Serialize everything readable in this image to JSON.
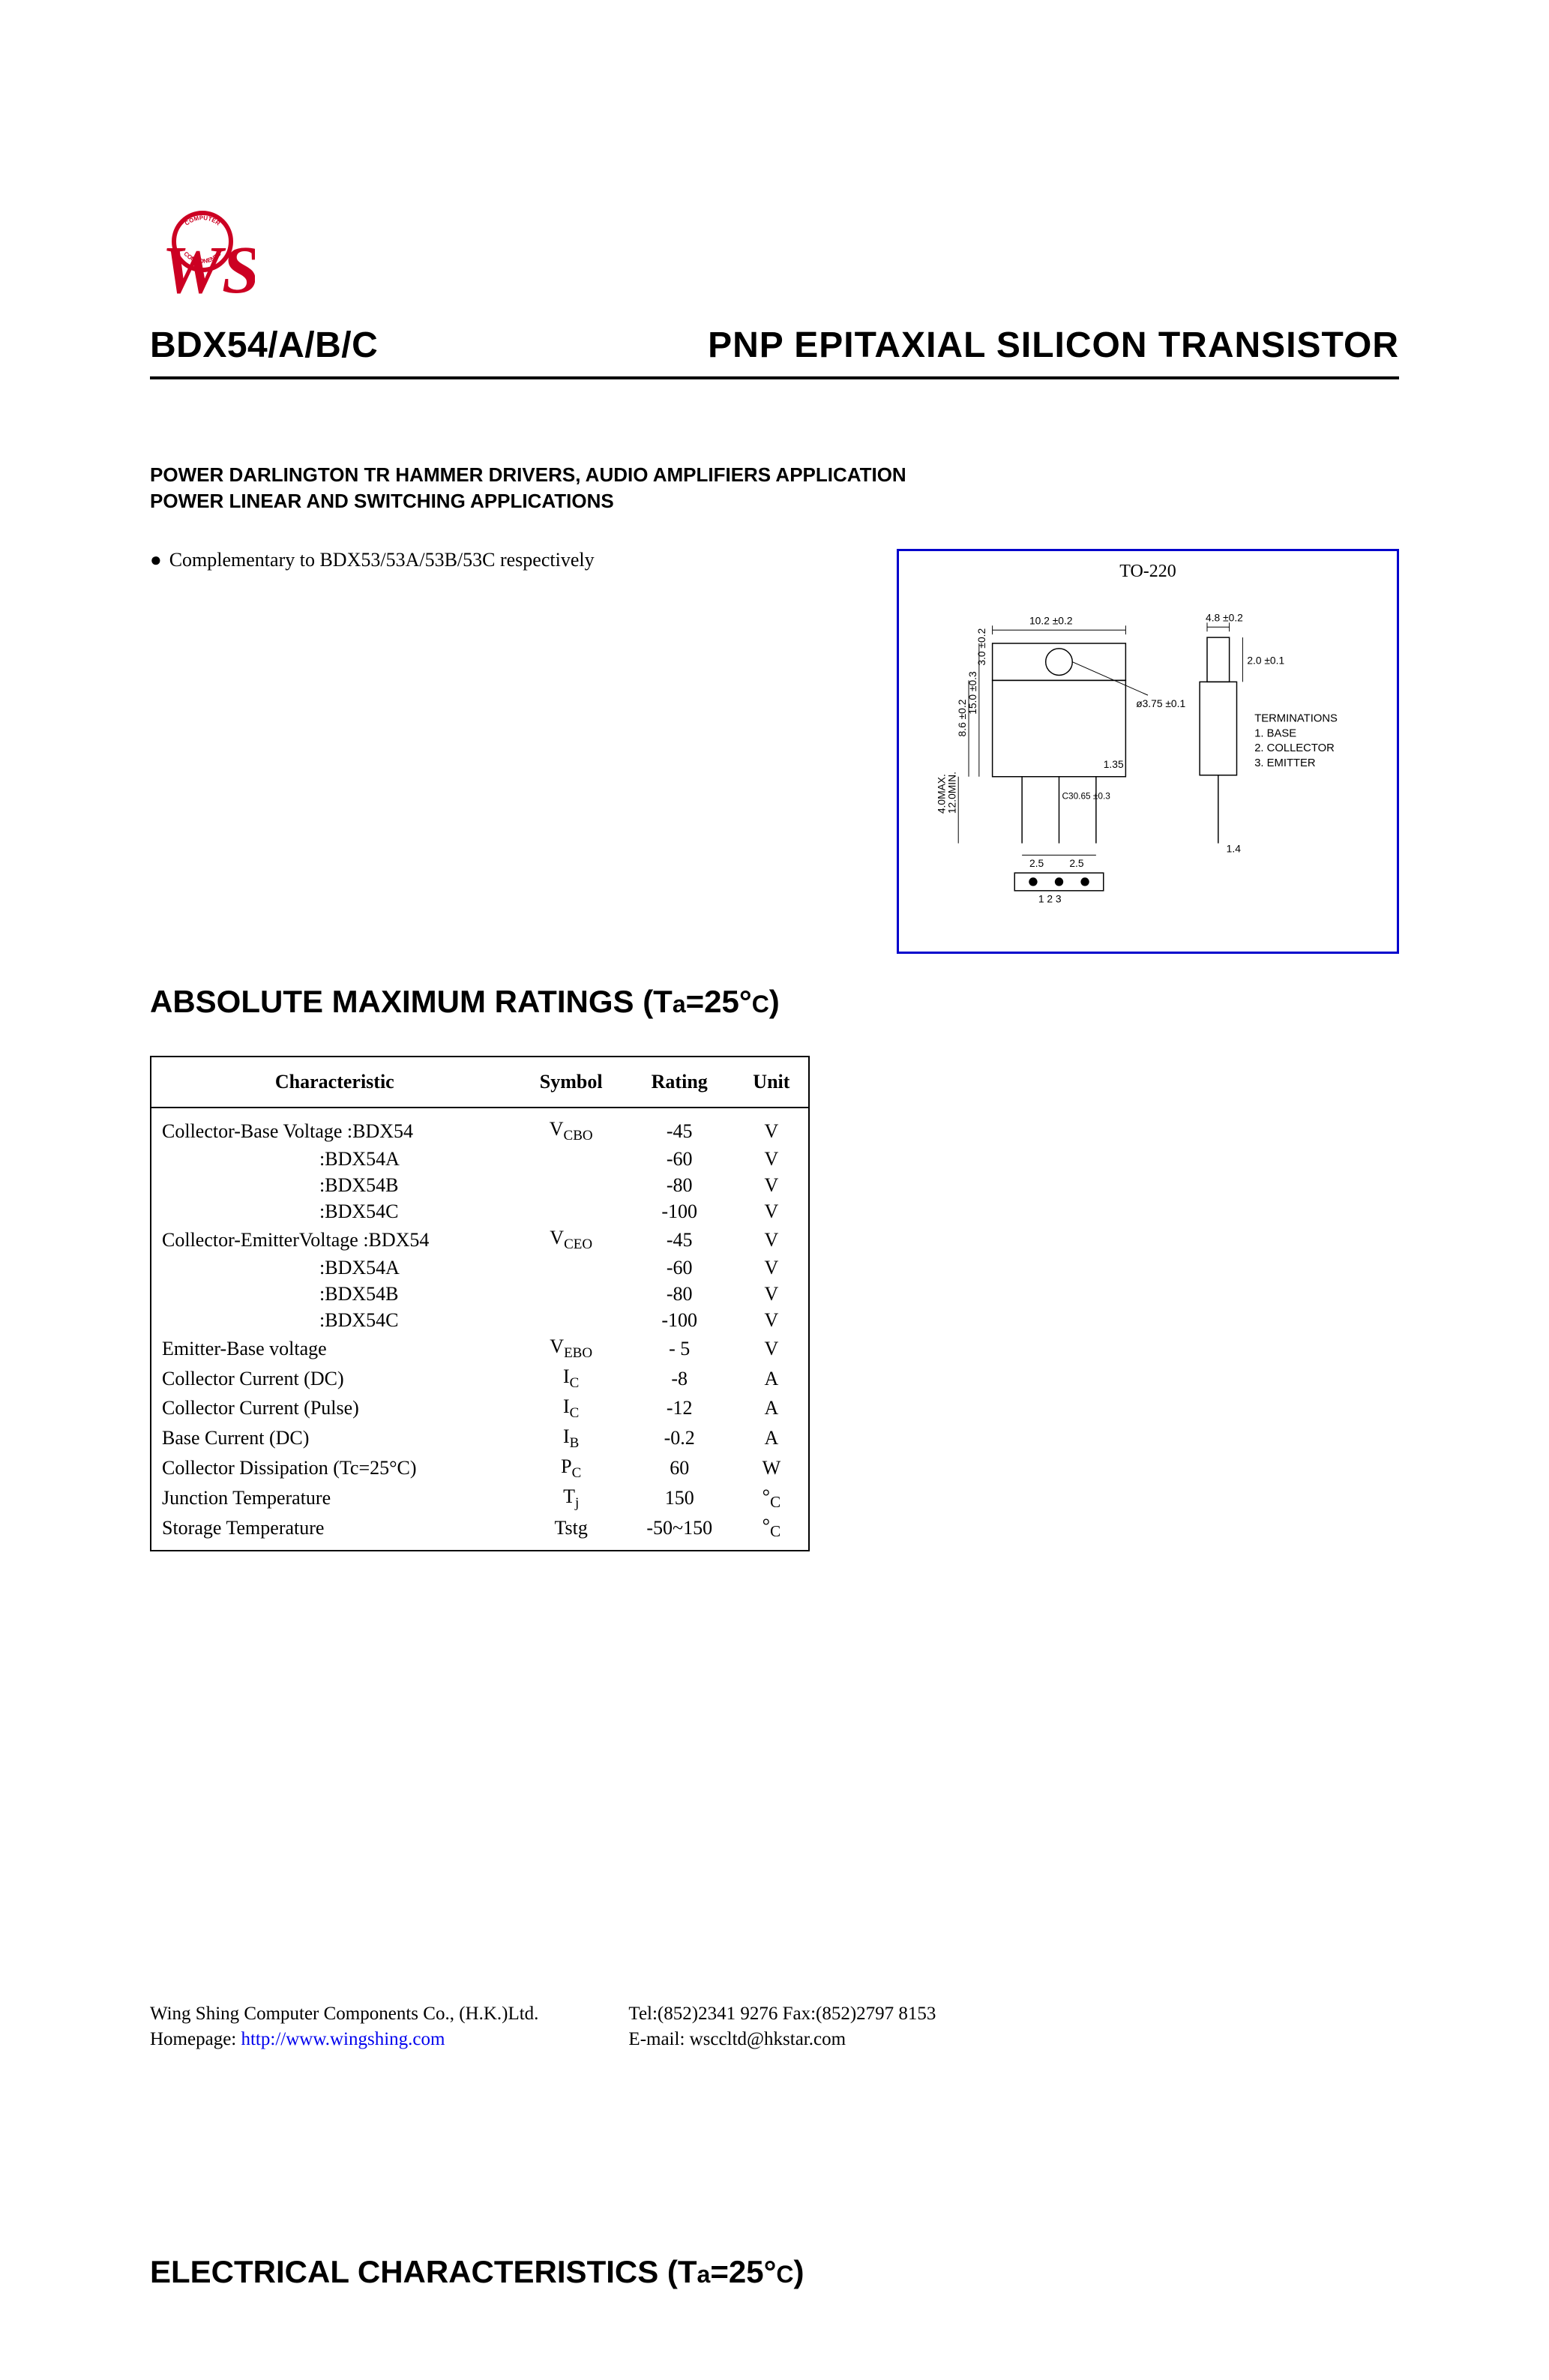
{
  "logo": {
    "text_top": "WS",
    "circle_text_top": "COMPUTER",
    "circle_text_bottom": "COMPONENTS",
    "color": "#cc0022"
  },
  "header": {
    "part_number": "BDX54/A/B/C",
    "title": "PNP EPITAXIAL SILICON TRANSISTOR"
  },
  "applications": {
    "line1": "POWER DARLINGTON TR HAMMER DRIVERS, AUDIO AMPLIFIERS APPLICATION",
    "line2": "POWER LINEAR AND SWITCHING APPLICATIONS"
  },
  "bullet": {
    "text": "Complementary to BDX53/53A/53B/53C respectively"
  },
  "package": {
    "label": "TO-220",
    "terminations_title": "TERMINATIONS",
    "term1": "1. BASE",
    "term2": "2. COLLECTOR",
    "term3": "3. EMITTER",
    "dims": {
      "body_w": "10.2 ±0.2",
      "tab_w": "4.8 ±0.2",
      "tab_d": "2.0 ±0.1",
      "hole": "ø3.75 ±0.1",
      "h_top": "3.0 ±0.2",
      "h_body": "15.0 ±0.3",
      "h_tab": "8.6 ±0.2",
      "lead_min": "12.0MIN.",
      "lead_thk": "4.0MAX.",
      "lead_w": "1.35",
      "lead_pitch": "2.5",
      "lead_pitch2": "2.5",
      "hole_pitch": "C30.65 ±0.3",
      "pin_w": "1.4",
      "pins": "1 2 3"
    }
  },
  "ratings_heading": {
    "prefix": "ABSOLUTE MAXIMUM RATINGS (T",
    "sub": "a",
    "mid": "=25°",
    "c": "C",
    "suffix": ")"
  },
  "table": {
    "head": {
      "c1": "Characteristic",
      "c2": "Symbol",
      "c3": "Rating",
      "c4": "Unit"
    },
    "rows": [
      {
        "char": "Collector-Base Voltage :BDX54",
        "sym_base": "V",
        "sym_sub": "CBO",
        "rating": "-45",
        "unit": "V"
      },
      {
        "char_indent": ":BDX54A",
        "rating": "-60",
        "unit": "V"
      },
      {
        "char_indent": ":BDX54B",
        "rating": "-80",
        "unit": "V"
      },
      {
        "char_indent": ":BDX54C",
        "rating": "-100",
        "unit": "V"
      },
      {
        "char": "Collector-EmitterVoltage :BDX54",
        "sym_base": "V",
        "sym_sub": "CEO",
        "rating": "-45",
        "unit": "V"
      },
      {
        "char_indent": ":BDX54A",
        "rating": "-60",
        "unit": "V"
      },
      {
        "char_indent": ":BDX54B",
        "rating": "-80",
        "unit": "V"
      },
      {
        "char_indent": ":BDX54C",
        "rating": "-100",
        "unit": "V"
      },
      {
        "char": "Emitter-Base voltage",
        "sym_base": "V",
        "sym_sub": "EBO",
        "rating": "- 5",
        "unit": "V"
      },
      {
        "char": "Collector Current (DC)",
        "sym_base": "I",
        "sym_sub": "C",
        "rating": "-8",
        "unit": "A"
      },
      {
        "char": "Collector Current (Pulse)",
        "sym_base": "I",
        "sym_sub": "C",
        "rating": "-12",
        "unit": "A"
      },
      {
        "char": "Base Current (DC)",
        "sym_base": "I",
        "sym_sub": "B",
        "rating": "-0.2",
        "unit": "A"
      },
      {
        "char": "Collector Dissipation (Tc=25°C)",
        "sym_base": "P",
        "sym_sub": "C",
        "rating": "60",
        "unit": "W"
      },
      {
        "char": "Junction Temperature",
        "sym_base": "T",
        "sym_sub": "j",
        "rating": "150",
        "unit_deg": "°C"
      },
      {
        "char": "Storage Temperature",
        "sym_base": "Tstg",
        "rating": "-50~150",
        "unit_deg": "°C"
      }
    ]
  },
  "footer": {
    "left_line1": "Wing Shing Computer Components Co., (H.K.)Ltd.",
    "left_line2_label": "Homepage:  ",
    "left_line2_link": "http://www.wingshing.com",
    "right_line1": "Tel:(852)2341 9276   Fax:(852)2797 8153",
    "right_line2": "E-mail:   wsccltd@hkstar.com"
  },
  "elec_heading": {
    "prefix": "ELECTRICAL CHARACTERISTICS (T",
    "sub": "a",
    "mid": "=25°",
    "c": "C",
    "suffix": ")"
  },
  "colors": {
    "logo": "#cc0022",
    "box_border": "#0000cc",
    "link": "#0000ee",
    "text": "#000000",
    "bg": "#ffffff"
  }
}
